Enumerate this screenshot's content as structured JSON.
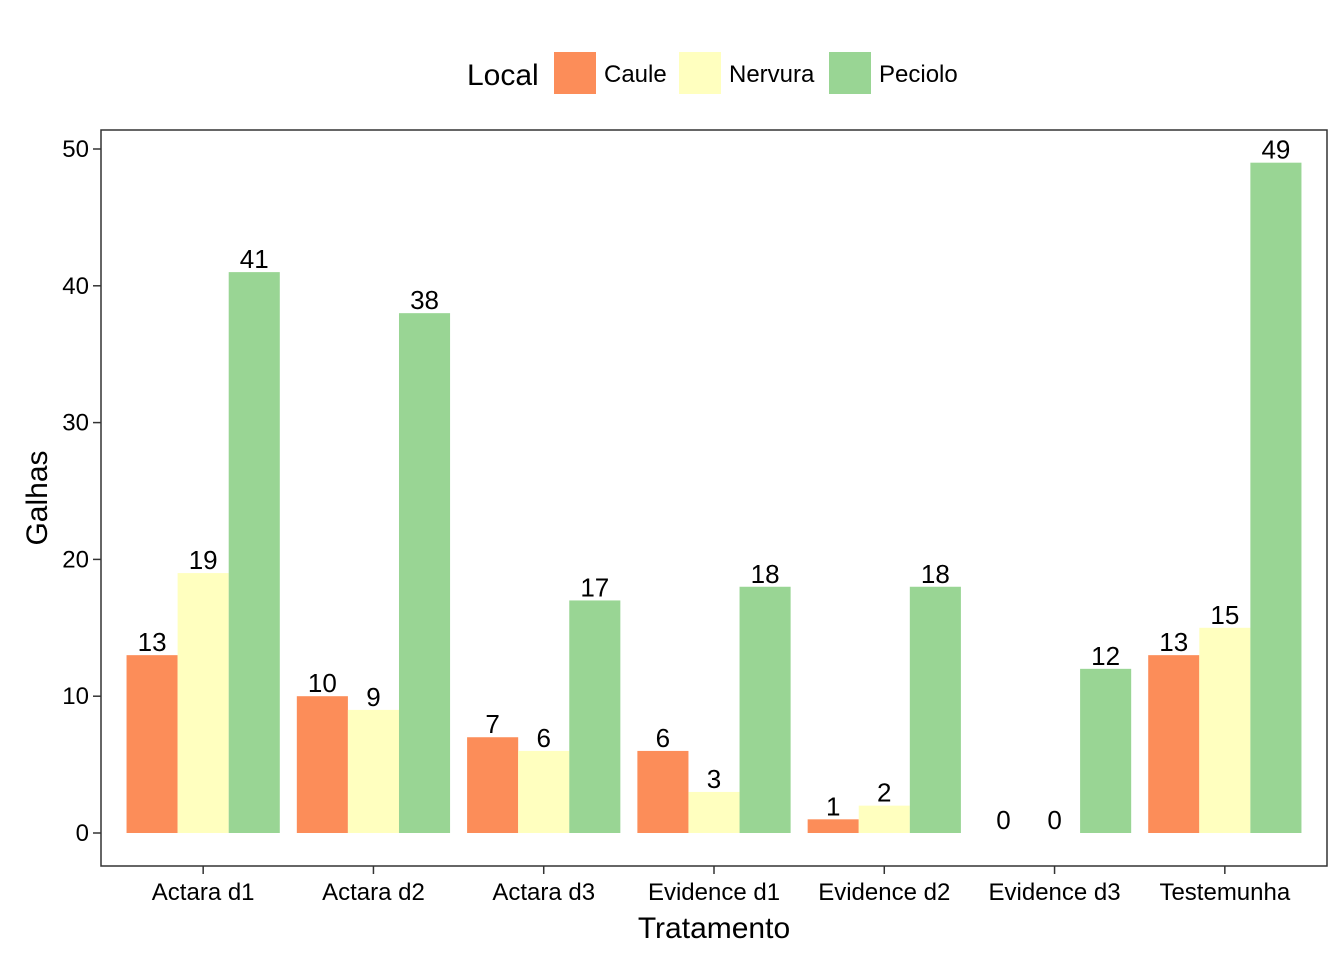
{
  "chart_data": {
    "type": "bar",
    "xlabel": "Tratamento",
    "ylabel": "Galhas",
    "ylim": [
      0,
      50
    ],
    "yticks": [
      0,
      10,
      20,
      30,
      40,
      50
    ],
    "grid": false,
    "legend": {
      "title": "Local",
      "placement": "top"
    },
    "categories": [
      "Actara d1",
      "Actara d2",
      "Actara d3",
      "Evidence d1",
      "Evidence d2",
      "Evidence d3",
      "Testemunha"
    ],
    "series": [
      {
        "name": "Caule",
        "color": "#fc8d59",
        "values": [
          13,
          10,
          7,
          6,
          1,
          0,
          13
        ]
      },
      {
        "name": "Nervura",
        "color": "#ffffbf",
        "values": [
          19,
          9,
          6,
          3,
          2,
          0,
          15
        ]
      },
      {
        "name": "Peciolo",
        "color": "#99d594",
        "values": [
          41,
          38,
          17,
          18,
          18,
          12,
          49
        ]
      }
    ]
  }
}
